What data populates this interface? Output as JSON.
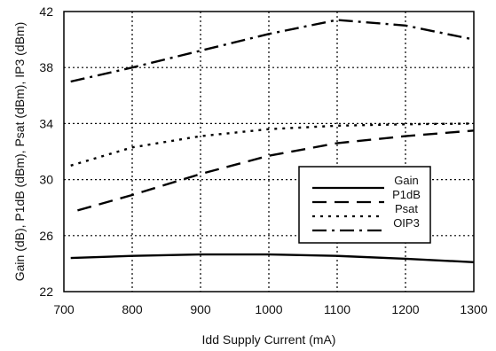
{
  "chart_data": {
    "type": "line",
    "title": "",
    "xlabel": "Idd Supply Current (mA)",
    "ylabel": "Gain (dB), P1dB (dBm), Psat (dBm), IP3 (dBm)",
    "xlim": [
      700,
      1300
    ],
    "ylim": [
      22,
      42
    ],
    "xticks": [
      700,
      800,
      900,
      1000,
      1100,
      1200,
      1300
    ],
    "yticks": [
      22,
      26,
      30,
      34,
      38,
      42
    ],
    "grid": true,
    "legend_position": "right",
    "series": [
      {
        "name": "Gain",
        "style": "solid",
        "x": [
          710,
          800,
          900,
          1000,
          1100,
          1200,
          1300
        ],
        "y": [
          24.4,
          24.55,
          24.65,
          24.65,
          24.55,
          24.35,
          24.1
        ]
      },
      {
        "name": "P1dB",
        "style": "dash",
        "x": [
          720,
          800,
          900,
          1000,
          1100,
          1200,
          1300
        ],
        "y": [
          27.8,
          28.9,
          30.4,
          31.7,
          32.6,
          33.1,
          33.5
        ]
      },
      {
        "name": "Psat",
        "style": "dot",
        "x": [
          710,
          800,
          900,
          1000,
          1100,
          1200,
          1300
        ],
        "y": [
          31.0,
          32.3,
          33.1,
          33.6,
          33.85,
          33.95,
          34.0
        ]
      },
      {
        "name": "OIP3",
        "style": "dashdot",
        "x": [
          710,
          800,
          900,
          1000,
          1100,
          1200,
          1300
        ],
        "y": [
          37.0,
          38.0,
          39.2,
          40.4,
          41.4,
          41.0,
          40.0
        ]
      }
    ]
  }
}
